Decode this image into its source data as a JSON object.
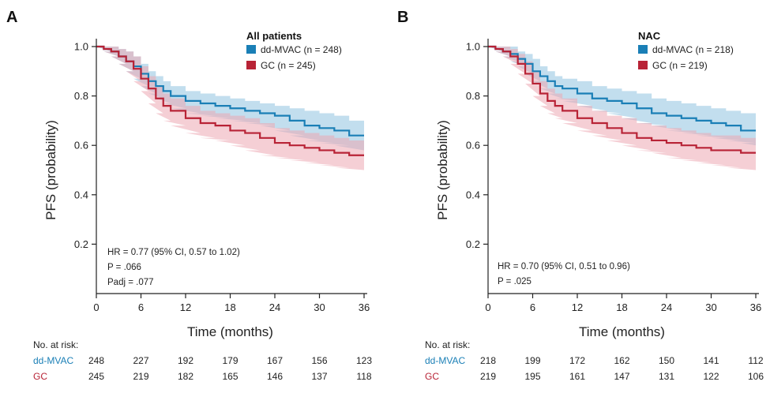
{
  "colors": {
    "series_a": "#1a7fb6",
    "series_b": "#b82336",
    "band_a": "#8fc3e0",
    "band_b": "#eda8b2",
    "axis": "#222222"
  },
  "chart_data": [
    {
      "panel_letter": "A",
      "type": "line",
      "subtype": "kaplan-meier step curves with confidence bands",
      "ylabel": "PFS (probability)",
      "xlabel": "Time (months)",
      "xlim": [
        0,
        36
      ],
      "ylim": [
        0,
        1.0
      ],
      "x_ticks": [
        "0",
        "6",
        "12",
        "18",
        "24",
        "30",
        "36"
      ],
      "y_ticks": [
        "0.2",
        "0.4",
        "0.6",
        "0.8",
        "1.0"
      ],
      "legend_title": "All patients",
      "legend_position": "top-right",
      "series": [
        {
          "name": "dd-MVAC (n = 248)",
          "x": [
            0,
            1,
            2,
            3,
            4,
            5,
            6,
            7,
            8,
            9,
            10,
            12,
            14,
            16,
            18,
            20,
            22,
            24,
            26,
            28,
            30,
            32,
            34,
            36
          ],
          "y": [
            1.0,
            0.99,
            0.98,
            0.96,
            0.94,
            0.92,
            0.89,
            0.86,
            0.84,
            0.82,
            0.8,
            0.78,
            0.77,
            0.76,
            0.75,
            0.74,
            0.73,
            0.72,
            0.7,
            0.68,
            0.67,
            0.66,
            0.64,
            0.64
          ],
          "ci_upper": [
            1.0,
            1.0,
            1.0,
            0.99,
            0.98,
            0.96,
            0.93,
            0.9,
            0.88,
            0.86,
            0.84,
            0.82,
            0.81,
            0.8,
            0.79,
            0.78,
            0.77,
            0.76,
            0.75,
            0.74,
            0.73,
            0.72,
            0.7,
            0.7
          ],
          "ci_lower": [
            1.0,
            0.98,
            0.96,
            0.93,
            0.9,
            0.87,
            0.84,
            0.81,
            0.79,
            0.77,
            0.75,
            0.73,
            0.72,
            0.71,
            0.7,
            0.69,
            0.68,
            0.66,
            0.64,
            0.62,
            0.61,
            0.6,
            0.58,
            0.58
          ]
        },
        {
          "name": "GC (n = 245)",
          "x": [
            0,
            1,
            2,
            3,
            4,
            5,
            6,
            7,
            8,
            9,
            10,
            12,
            14,
            16,
            18,
            20,
            22,
            24,
            26,
            28,
            30,
            32,
            34,
            36
          ],
          "y": [
            1.0,
            0.99,
            0.98,
            0.96,
            0.94,
            0.91,
            0.87,
            0.83,
            0.79,
            0.76,
            0.74,
            0.71,
            0.69,
            0.68,
            0.66,
            0.65,
            0.63,
            0.61,
            0.6,
            0.59,
            0.58,
            0.57,
            0.56,
            0.56
          ],
          "ci_upper": [
            1.0,
            1.0,
            1.0,
            0.99,
            0.98,
            0.96,
            0.92,
            0.88,
            0.84,
            0.81,
            0.79,
            0.76,
            0.74,
            0.73,
            0.72,
            0.71,
            0.69,
            0.67,
            0.66,
            0.65,
            0.64,
            0.63,
            0.62,
            0.62
          ],
          "ci_lower": [
            1.0,
            0.98,
            0.96,
            0.93,
            0.9,
            0.86,
            0.82,
            0.77,
            0.73,
            0.7,
            0.68,
            0.65,
            0.63,
            0.62,
            0.6,
            0.58,
            0.56,
            0.55,
            0.54,
            0.53,
            0.52,
            0.51,
            0.5,
            0.5
          ]
        }
      ],
      "stats_lines": [
        {
          "text": "HR = 0.77 (95% CI, 0.57 to 1.02)"
        },
        {
          "text": "P = .066"
        },
        {
          "text": "Padj = .077"
        }
      ],
      "risk_table": {
        "header": "No. at risk:",
        "rows": [
          {
            "label": "dd-MVAC",
            "values": [
              "248",
              "227",
              "192",
              "179",
              "167",
              "156",
              "123"
            ]
          },
          {
            "label": "GC",
            "values": [
              "245",
              "219",
              "182",
              "165",
              "146",
              "137",
              "118"
            ]
          }
        ]
      }
    },
    {
      "panel_letter": "B",
      "type": "line",
      "subtype": "kaplan-meier step curves with confidence bands",
      "ylabel": "PFS (probability)",
      "xlabel": "Time (months)",
      "xlim": [
        0,
        36
      ],
      "ylim": [
        0,
        1.0
      ],
      "x_ticks": [
        "0",
        "6",
        "12",
        "18",
        "24",
        "30",
        "36"
      ],
      "y_ticks": [
        "0.2",
        "0.4",
        "0.6",
        "0.8",
        "1.0"
      ],
      "legend_title": "NAC",
      "legend_position": "top-right",
      "series": [
        {
          "name": "dd-MVAC (n = 218)",
          "x": [
            0,
            1,
            2,
            3,
            4,
            5,
            6,
            7,
            8,
            9,
            10,
            12,
            14,
            16,
            18,
            20,
            22,
            24,
            26,
            28,
            30,
            32,
            34,
            36
          ],
          "y": [
            1.0,
            0.99,
            0.98,
            0.97,
            0.95,
            0.93,
            0.9,
            0.88,
            0.86,
            0.84,
            0.83,
            0.81,
            0.79,
            0.78,
            0.77,
            0.75,
            0.73,
            0.72,
            0.71,
            0.7,
            0.69,
            0.68,
            0.66,
            0.66
          ],
          "ci_upper": [
            1.0,
            1.0,
            1.0,
            1.0,
            0.98,
            0.97,
            0.95,
            0.92,
            0.9,
            0.88,
            0.87,
            0.86,
            0.84,
            0.83,
            0.82,
            0.81,
            0.79,
            0.78,
            0.77,
            0.76,
            0.75,
            0.74,
            0.73,
            0.72
          ],
          "ci_lower": [
            1.0,
            0.98,
            0.96,
            0.94,
            0.92,
            0.89,
            0.86,
            0.83,
            0.81,
            0.79,
            0.78,
            0.76,
            0.74,
            0.73,
            0.71,
            0.69,
            0.68,
            0.66,
            0.65,
            0.64,
            0.63,
            0.62,
            0.61,
            0.6
          ]
        },
        {
          "name": "GC (n = 219)",
          "x": [
            0,
            1,
            2,
            3,
            4,
            5,
            6,
            7,
            8,
            9,
            10,
            12,
            14,
            16,
            18,
            20,
            22,
            24,
            26,
            28,
            30,
            32,
            34,
            36
          ],
          "y": [
            1.0,
            0.99,
            0.98,
            0.96,
            0.93,
            0.89,
            0.85,
            0.81,
            0.78,
            0.76,
            0.74,
            0.71,
            0.69,
            0.67,
            0.65,
            0.63,
            0.62,
            0.61,
            0.6,
            0.59,
            0.58,
            0.58,
            0.57,
            0.57
          ],
          "ci_upper": [
            1.0,
            1.0,
            1.0,
            0.99,
            0.97,
            0.94,
            0.9,
            0.86,
            0.83,
            0.81,
            0.79,
            0.76,
            0.74,
            0.72,
            0.71,
            0.69,
            0.68,
            0.67,
            0.66,
            0.65,
            0.64,
            0.64,
            0.63,
            0.63
          ],
          "ci_lower": [
            1.0,
            0.98,
            0.96,
            0.93,
            0.89,
            0.85,
            0.8,
            0.76,
            0.73,
            0.71,
            0.69,
            0.66,
            0.64,
            0.62,
            0.6,
            0.58,
            0.57,
            0.55,
            0.54,
            0.53,
            0.52,
            0.51,
            0.5,
            0.5
          ]
        }
      ],
      "stats_lines": [
        {
          "text": "HR = 0.70 (95% CI, 0.51 to 0.96)"
        },
        {
          "text": "P = .025"
        }
      ],
      "risk_table": {
        "header": "No. at risk:",
        "rows": [
          {
            "label": "dd-MVAC",
            "values": [
              "218",
              "199",
              "172",
              "162",
              "150",
              "141",
              "112"
            ]
          },
          {
            "label": "GC",
            "values": [
              "219",
              "195",
              "161",
              "147",
              "131",
              "122",
              "106"
            ]
          }
        ]
      }
    }
  ]
}
